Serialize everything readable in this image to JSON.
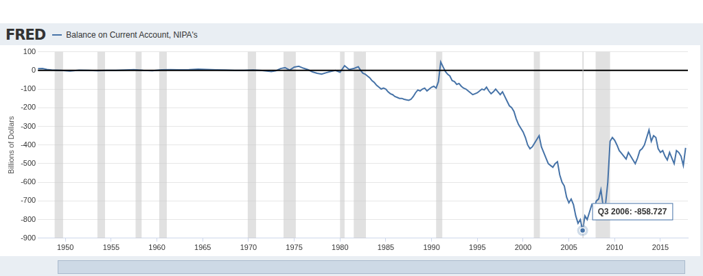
{
  "chart_data": {
    "type": "line",
    "logo": "FRED",
    "y_label": "Billions of Dollars",
    "xlim": [
      1947,
      2018
    ],
    "xticks": [
      1950,
      1955,
      1960,
      1965,
      1970,
      1975,
      1980,
      1985,
      1990,
      1995,
      2000,
      2005,
      2010,
      2015
    ],
    "ylim": [
      -900,
      100
    ],
    "yticks": [
      -900,
      -800,
      -700,
      -600,
      -500,
      -400,
      -300,
      -200,
      -100,
      0,
      100
    ],
    "grid": true,
    "hline": 0,
    "recessions": [
      [
        1948.83,
        1949.75
      ],
      [
        1953.5,
        1954.33
      ],
      [
        1957.67,
        1958.33
      ],
      [
        1960.25,
        1961.08
      ],
      [
        1969.92,
        1970.83
      ],
      [
        1973.83,
        1975.17
      ],
      [
        1980.0,
        1980.5
      ],
      [
        1981.5,
        1982.83
      ],
      [
        1990.5,
        1991.17
      ],
      [
        2001.17,
        2001.83
      ],
      [
        2007.92,
        2009.5
      ]
    ],
    "annotation": {
      "x": 2006.5,
      "y": -858.727,
      "label": "Q3 2006: -858.727"
    },
    "x": [
      1947,
      1947.5,
      1948,
      1948.5,
      1949.5,
      1950.5,
      1951.5,
      1952.5,
      1953.5,
      1954.5,
      1955.5,
      1956.5,
      1957.5,
      1958.5,
      1959.5,
      1960.5,
      1961.5,
      1962.5,
      1963.5,
      1964.5,
      1965.5,
      1966.5,
      1967.5,
      1968.5,
      1969.5,
      1970.5,
      1971.5,
      1972.5,
      1973,
      1973.5,
      1974,
      1974.5,
      1975,
      1975.5,
      1976,
      1976.5,
      1977,
      1977.5,
      1978,
      1978.5,
      1979,
      1979.5,
      1980,
      1980.5,
      1981,
      1981.5,
      1981.75,
      1982,
      1982.25,
      1982.5,
      1982.75,
      1983,
      1983.25,
      1983.5,
      1983.75,
      1984,
      1984.25,
      1984.5,
      1984.75,
      1985,
      1985.25,
      1985.5,
      1985.75,
      1986,
      1986.25,
      1986.5,
      1986.75,
      1987,
      1987.25,
      1987.5,
      1987.75,
      1988,
      1988.25,
      1988.5,
      1988.75,
      1989,
      1989.25,
      1989.5,
      1989.75,
      1990,
      1990.25,
      1990.5,
      1990.75,
      1991,
      1991.25,
      1991.5,
      1991.75,
      1992,
      1992.25,
      1992.5,
      1992.75,
      1993,
      1993.25,
      1993.5,
      1993.75,
      1994,
      1994.25,
      1994.5,
      1994.75,
      1995,
      1995.25,
      1995.5,
      1995.75,
      1996,
      1996.25,
      1996.5,
      1996.75,
      1997,
      1997.25,
      1997.5,
      1997.75,
      1998,
      1998.25,
      1998.5,
      1998.75,
      1999,
      1999.25,
      1999.5,
      1999.75,
      2000,
      2000.25,
      2000.5,
      2000.75,
      2001,
      2001.25,
      2001.5,
      2001.75,
      2002,
      2002.25,
      2002.5,
      2002.75,
      2003,
      2003.25,
      2003.5,
      2003.75,
      2004,
      2004.25,
      2004.5,
      2004.75,
      2005,
      2005.25,
      2005.5,
      2005.75,
      2006,
      2006.25,
      2006.5,
      2006.75,
      2007,
      2007.25,
      2007.5,
      2007.75,
      2008,
      2008.25,
      2008.5,
      2008.75,
      2009,
      2009.25,
      2009.5,
      2009.75,
      2010,
      2010.25,
      2010.5,
      2010.75,
      2011,
      2011.25,
      2011.5,
      2011.75,
      2012,
      2012.25,
      2012.5,
      2012.75,
      2013,
      2013.25,
      2013.5,
      2013.75,
      2014,
      2014.25,
      2014.5,
      2014.75,
      2015,
      2015.25,
      2015.5,
      2015.75,
      2016,
      2016.25,
      2016.5,
      2016.75,
      2017,
      2017.25,
      2017.5,
      2017.75
    ],
    "series": [
      {
        "name": "Balance on Current Account, NIPA's",
        "color": "#4572a7",
        "values": [
          9,
          10,
          5,
          2,
          0,
          -3,
          1,
          0,
          -2,
          0,
          0,
          2,
          4,
          0,
          -2,
          3,
          4,
          3,
          4,
          7,
          5,
          3,
          2,
          0,
          0,
          2,
          -1,
          -6,
          -2,
          10,
          15,
          2,
          18,
          22,
          12,
          4,
          -8,
          -15,
          -20,
          -12,
          -5,
          0,
          -10,
          25,
          5,
          10,
          15,
          20,
          0,
          -15,
          -20,
          -30,
          -40,
          -55,
          -65,
          -80,
          -90,
          -100,
          -95,
          -100,
          -115,
          -125,
          -130,
          -140,
          -145,
          -150,
          -150,
          -155,
          -158,
          -160,
          -155,
          -140,
          -120,
          -105,
          -110,
          -100,
          -95,
          -110,
          -100,
          -90,
          -85,
          -95,
          -60,
          45,
          20,
          -5,
          -20,
          -30,
          -55,
          -60,
          -75,
          -70,
          -85,
          -95,
          -100,
          -110,
          -120,
          -130,
          -125,
          -120,
          -110,
          -100,
          -105,
          -90,
          -110,
          -125,
          -115,
          -100,
          -115,
          -130,
          -115,
          -140,
          -165,
          -190,
          -200,
          -220,
          -260,
          -290,
          -310,
          -330,
          -360,
          -400,
          -420,
          -410,
          -390,
          -370,
          -350,
          -410,
          -440,
          -470,
          -500,
          -510,
          -520,
          -500,
          -490,
          -560,
          -600,
          -620,
          -680,
          -710,
          -690,
          -720,
          -780,
          -820,
          -800,
          -858.727,
          -780,
          -800,
          -760,
          -720,
          -740,
          -700,
          -690,
          -640,
          -730,
          -720,
          -600,
          -380,
          -360,
          -375,
          -400,
          -430,
          -445,
          -460,
          -475,
          -440,
          -460,
          -480,
          -500,
          -470,
          -430,
          -420,
          -400,
          -360,
          -320,
          -380,
          -350,
          -360,
          -420,
          -440,
          -430,
          -460,
          -480,
          -440,
          -470,
          -500,
          -430,
          -440,
          -460,
          -510,
          -415
        ]
      }
    ]
  }
}
